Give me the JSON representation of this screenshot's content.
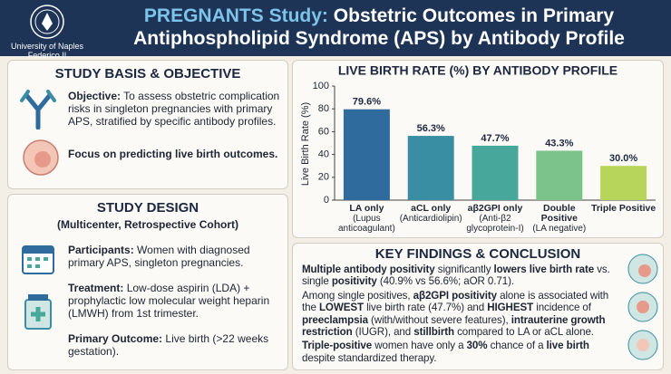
{
  "header": {
    "logo_lines": [
      "University of Naples",
      "Federico II"
    ],
    "title_highlight": "PREGNANTS Study:",
    "title": "Obstetric Outcomes in Primary Antiphospholipid Syndrome (APS) by Antibody Profile"
  },
  "objective": {
    "heading": "STUDY BASIS & OBJECTIVE",
    "label": "Objective:",
    "text": "To assess obstetric complication risks in singleton pregnancies with primary APS, stratified by specific antibody profiles.",
    "focus": "Focus on predicting live birth outcomes."
  },
  "design": {
    "heading": "STUDY DESIGN",
    "subheading": "(Multicenter, Retrospective Cohort)",
    "items": [
      {
        "label": "Participants:",
        "text": "Women with diagnosed primary APS, singleton pregnancies."
      },
      {
        "label": "Treatment:",
        "text": "Low-dose aspirin (LDA) + prophylactic low molecular weight heparin (LMWH) from 1st trimester."
      },
      {
        "label": "Primary Outcome:",
        "text": "Live birth (>22 weeks gestation)."
      }
    ]
  },
  "chart_data": {
    "type": "bar",
    "title": "LIVE BIRTH RATE (%) BY ANTIBODY PROFILE",
    "y_label": "Live Birth Rate (%)",
    "categories": [
      "LA only",
      "aCL only",
      "aβ2GPI only",
      "Double Positive",
      "Triple Positive"
    ],
    "category_notes": [
      "(Lupus anticoagulant)",
      "(Anticardiolipin)",
      "(Anti-β2 glycoprotein-I)",
      "(LA negative)",
      null
    ],
    "values": [
      79.6,
      56.3,
      47.7,
      43.3,
      30
    ],
    "value_labels": [
      "79.6%",
      "56.3%",
      "47.7%",
      "43.3%",
      "30.0%"
    ],
    "colors": [
      "#2f6b9c",
      "#3a8ea3",
      "#46a79a",
      "#7bc38a",
      "#b7d55a"
    ],
    "ylim": [
      0,
      100
    ],
    "yticks": [
      0,
      20,
      40,
      60,
      80,
      100
    ],
    "grid": false
  },
  "findings": {
    "heading": "KEY FINDINGS & CONCLUSION",
    "paragraphs": [
      [
        {
          "t": "Multiple antibody positivity",
          "b": true
        },
        {
          "t": " significantly ",
          "b": false
        },
        {
          "t": "lowers live birth rate",
          "b": true
        },
        {
          "t": " vs. single ",
          "b": false
        },
        {
          "t": "positivity",
          "b": true
        },
        {
          "t": " (40.9% vs 56.6%; aOR 0.71).",
          "b": false
        }
      ],
      [
        {
          "t": "Among single positives, ",
          "b": false
        },
        {
          "t": "aβ2GPI positivity",
          "b": true
        },
        {
          "t": " alone is associated with the ",
          "b": false
        },
        {
          "t": "LOWEST",
          "b": true
        },
        {
          "t": " live birth rate (47.7%) and ",
          "b": false
        },
        {
          "t": "HIGHEST",
          "b": true
        },
        {
          "t": " incidence of ",
          "b": false
        },
        {
          "t": "preeclampsia",
          "b": true
        },
        {
          "t": " (with/without severe features), ",
          "b": false
        },
        {
          "t": "intrauterine growth restriction",
          "b": true
        },
        {
          "t": " (IUGR), and ",
          "b": false
        },
        {
          "t": "stillbirth",
          "b": true
        },
        {
          "t": " compared to LA or aCL alone.",
          "b": false
        }
      ],
      [
        {
          "t": "Triple-positive",
          "b": true
        },
        {
          "t": " women have only a ",
          "b": false
        },
        {
          "t": "30%",
          "b": true
        },
        {
          "t": " chance of a ",
          "b": false
        },
        {
          "t": "live birth",
          "b": true
        },
        {
          "t": " despite standardized therapy.",
          "b": false
        }
      ]
    ]
  }
}
